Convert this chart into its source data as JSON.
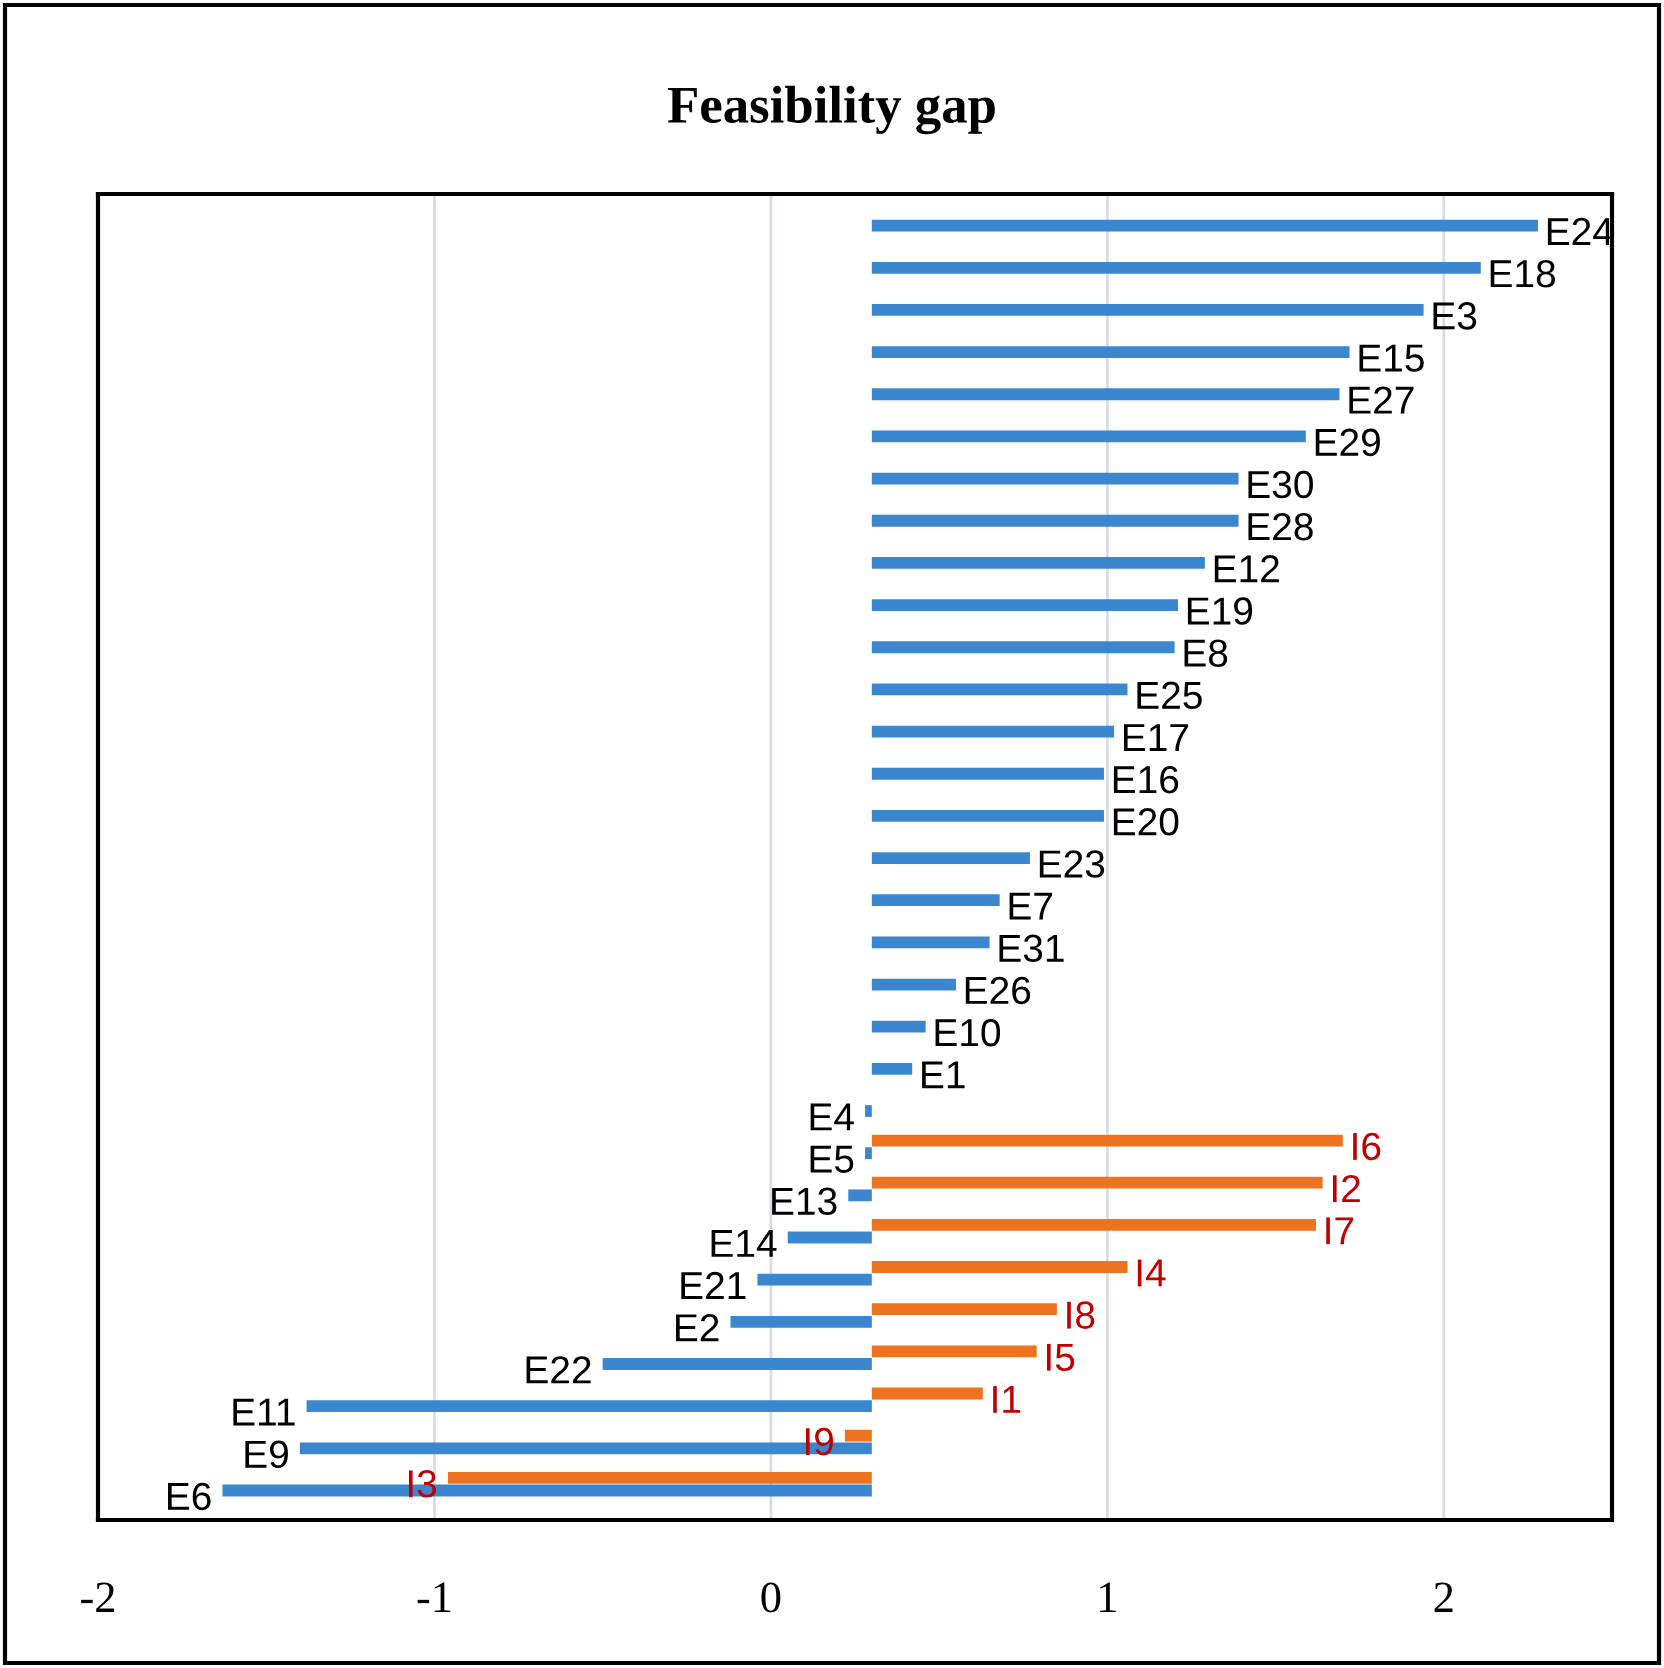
{
  "chart_data": {
    "type": "bar",
    "orientation": "horizontal",
    "title": "Feasibility gap",
    "categories": [
      null,
      null,
      null,
      null,
      null,
      null,
      null,
      null,
      null,
      null,
      null,
      null,
      null,
      null,
      null,
      null,
      null,
      null,
      null,
      null,
      null,
      null,
      null,
      null,
      null,
      null,
      null,
      null,
      null,
      null,
      null
    ],
    "series": [
      {
        "color": "#3a87d0",
        "values": [
          1.98,
          1.81,
          1.64,
          1.42,
          1.39,
          1.29,
          1.09,
          1.09,
          0.99,
          0.91,
          0.9,
          0.76,
          0.72,
          0.69,
          0.69,
          0.47,
          0.38,
          0.35,
          0.25,
          0.16,
          0.12,
          -0.02,
          -0.02,
          -0.07,
          -0.25,
          -0.34,
          -0.42,
          -0.8,
          -1.68,
          -1.7,
          -1.93
        ],
        "base": [
          0.3,
          0.3,
          0.3,
          0.3,
          0.3,
          0.3,
          0.3,
          0.3,
          0.3,
          0.3,
          0.3,
          0.3,
          0.3,
          0.3,
          0.3,
          0.3,
          0.3,
          0.3,
          0.3,
          0.3,
          0.3,
          0.3,
          0.3,
          0.3,
          0.3,
          0.3,
          0.3,
          0.3,
          0.3,
          0.3,
          0.3
        ],
        "value_labels": [
          "E24",
          "E18",
          "E3",
          "E15",
          "E27",
          "E29",
          "E30",
          "E28",
          "E12",
          "E19",
          "E8",
          "E25",
          "E17",
          "E16",
          "E20",
          "E23",
          "E7",
          "E31",
          "E26",
          "E10",
          "E1",
          "E4",
          "E5",
          "E13",
          "E14",
          "E21",
          "E2",
          "E22",
          "E11",
          "E9",
          "E6"
        ]
      },
      {
        "color": "#ee7320",
        "values": [
          null,
          null,
          null,
          null,
          null,
          null,
          null,
          null,
          null,
          null,
          null,
          null,
          null,
          null,
          null,
          null,
          null,
          null,
          null,
          null,
          null,
          null,
          1.4,
          1.34,
          1.32,
          0.76,
          0.55,
          0.49,
          0.33,
          -0.08,
          -1.26
        ],
        "base": [
          null,
          null,
          null,
          null,
          null,
          null,
          null,
          null,
          null,
          null,
          null,
          null,
          null,
          null,
          null,
          null,
          null,
          null,
          null,
          null,
          null,
          null,
          0.3,
          0.3,
          0.3,
          0.3,
          0.3,
          0.3,
          0.3,
          0.3,
          0.3
        ],
        "value_labels": [
          null,
          null,
          null,
          null,
          null,
          null,
          null,
          null,
          null,
          null,
          null,
          null,
          null,
          null,
          null,
          null,
          null,
          null,
          null,
          null,
          null,
          null,
          "I6",
          "I2",
          "I7",
          "I4",
          "I8",
          "I5",
          "I1",
          "I9",
          "I3"
        ]
      }
    ],
    "xlim": [
      -2,
      2.5
    ],
    "xticks": [
      -2,
      -1,
      0,
      1,
      2
    ],
    "grid": "x",
    "tick_labels": "x"
  }
}
